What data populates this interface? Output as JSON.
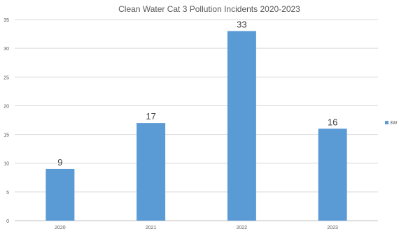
{
  "chart_data": {
    "type": "bar",
    "title": "Clean Water Cat 3 Pollution Incidents 2020-2023",
    "categories": [
      "2020",
      "2021",
      "2022",
      "2023"
    ],
    "series": [
      {
        "name": "3W",
        "values": [
          9,
          17,
          33,
          16
        ],
        "color": "#5b9bd5"
      }
    ],
    "ylim": [
      0,
      35
    ],
    "yticks": [
      0,
      5,
      10,
      15,
      20,
      25,
      30,
      35
    ],
    "grid": true,
    "legend": "right",
    "data_labels": true
  }
}
